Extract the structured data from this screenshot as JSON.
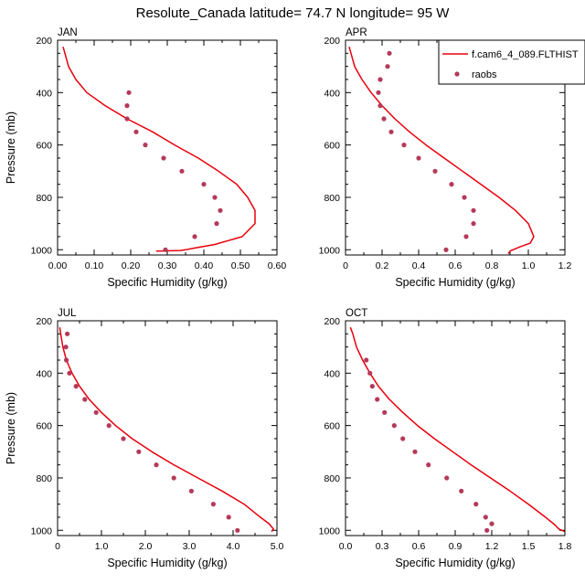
{
  "figure": {
    "title": "Resolute_Canada  latitude= 74.7 N longitude= 95 W"
  },
  "legend": {
    "model_label": "f.cam6_4_089.FLTHIST",
    "obs_label": "raobs",
    "model_color": "#e8000b",
    "obs_color": "#b5395a"
  },
  "chart_data": [
    {
      "type": "line",
      "panel": "JAN",
      "title": "JAN",
      "xlabel": "Specific Humidity (g/kg)",
      "ylabel": "Pressure (mb)",
      "xlim": [
        0,
        0.6
      ],
      "ylim": [
        200,
        1020
      ],
      "y_inverted": true,
      "xticks": [
        "0.00",
        "0.10",
        "0.20",
        "0.30",
        "0.40",
        "0.50",
        "0.60"
      ],
      "yticks": [
        "200",
        "400",
        "600",
        "800",
        "1000"
      ],
      "series": [
        {
          "name": "f.cam6_4_089.FLTHIST",
          "style": "line",
          "points": [
            [
              0.015,
              225
            ],
            [
              0.02,
              250
            ],
            [
              0.03,
              300
            ],
            [
              0.05,
              350
            ],
            [
              0.08,
              400
            ],
            [
              0.13,
              450
            ],
            [
              0.19,
              500
            ],
            [
              0.26,
              550
            ],
            [
              0.32,
              600
            ],
            [
              0.385,
              650
            ],
            [
              0.44,
              700
            ],
            [
              0.49,
              750
            ],
            [
              0.52,
              800
            ],
            [
              0.54,
              850
            ],
            [
              0.54,
              900
            ],
            [
              0.505,
              950
            ],
            [
              0.43,
              980
            ],
            [
              0.37,
              995
            ],
            [
              0.35,
              1000
            ],
            [
              0.335,
              1003
            ],
            [
              0.27,
              1005
            ]
          ]
        },
        {
          "name": "raobs",
          "style": "markers",
          "points": [
            [
              0.195,
              400
            ],
            [
              0.19,
              450
            ],
            [
              0.19,
              500
            ],
            [
              0.215,
              550
            ],
            [
              0.24,
              600
            ],
            [
              0.29,
              650
            ],
            [
              0.34,
              700
            ],
            [
              0.4,
              750
            ],
            [
              0.43,
              800
            ],
            [
              0.445,
              850
            ],
            [
              0.435,
              900
            ],
            [
              0.375,
              950
            ],
            [
              0.295,
              1000
            ]
          ]
        }
      ]
    },
    {
      "type": "line",
      "panel": "APR",
      "title": "APR",
      "xlabel": "Specific Humidity (g/kg)",
      "ylabel": "",
      "xlim": [
        0,
        1.2
      ],
      "ylim": [
        200,
        1020
      ],
      "y_inverted": true,
      "xticks": [
        "0",
        "0.2",
        "0.4",
        "0.6",
        "0.8",
        "1.0",
        "1.2"
      ],
      "yticks": [
        "200",
        "400",
        "600",
        "800",
        "1000"
      ],
      "series": [
        {
          "name": "f.cam6_4_089.FLTHIST",
          "style": "line",
          "points": [
            [
              0.02,
              225
            ],
            [
              0.03,
              250
            ],
            [
              0.05,
              300
            ],
            [
              0.09,
              350
            ],
            [
              0.14,
              400
            ],
            [
              0.2,
              450
            ],
            [
              0.27,
              500
            ],
            [
              0.35,
              550
            ],
            [
              0.44,
              600
            ],
            [
              0.54,
              650
            ],
            [
              0.64,
              700
            ],
            [
              0.74,
              750
            ],
            [
              0.84,
              800
            ],
            [
              0.93,
              850
            ],
            [
              1.0,
              900
            ],
            [
              1.03,
              950
            ],
            [
              1.01,
              975
            ],
            [
              0.95,
              990
            ],
            [
              0.9,
              1005
            ],
            [
              0.89,
              1015
            ]
          ]
        },
        {
          "name": "raobs",
          "style": "markers",
          "points": [
            [
              0.24,
              250
            ],
            [
              0.23,
              300
            ],
            [
              0.19,
              350
            ],
            [
              0.18,
              400
            ],
            [
              0.19,
              450
            ],
            [
              0.21,
              500
            ],
            [
              0.25,
              550
            ],
            [
              0.32,
              600
            ],
            [
              0.4,
              650
            ],
            [
              0.49,
              700
            ],
            [
              0.58,
              750
            ],
            [
              0.65,
              800
            ],
            [
              0.7,
              850
            ],
            [
              0.7,
              900
            ],
            [
              0.66,
              950
            ],
            [
              0.55,
              1000
            ]
          ]
        }
      ]
    },
    {
      "type": "line",
      "panel": "JUL",
      "title": "JUL",
      "xlabel": "Specific Humidity (g/kg)",
      "ylabel": "Pressure (mb)",
      "xlim": [
        0,
        5
      ],
      "ylim": [
        200,
        1020
      ],
      "y_inverted": true,
      "xticks": [
        "0",
        "1.0",
        "2.0",
        "3.0",
        "4.0",
        "5.0"
      ],
      "yticks": [
        "200",
        "400",
        "600",
        "800",
        "1000"
      ],
      "series": [
        {
          "name": "f.cam6_4_089.FLTHIST",
          "style": "line",
          "points": [
            [
              0.05,
              225
            ],
            [
              0.07,
              250
            ],
            [
              0.12,
              300
            ],
            [
              0.2,
              350
            ],
            [
              0.33,
              400
            ],
            [
              0.5,
              450
            ],
            [
              0.72,
              500
            ],
            [
              1.0,
              550
            ],
            [
              1.32,
              600
            ],
            [
              1.7,
              650
            ],
            [
              2.15,
              700
            ],
            [
              2.65,
              750
            ],
            [
              3.2,
              800
            ],
            [
              3.75,
              850
            ],
            [
              4.25,
              900
            ],
            [
              4.62,
              950
            ],
            [
              4.82,
              975
            ],
            [
              4.92,
              995
            ],
            [
              4.88,
              1005
            ]
          ]
        },
        {
          "name": "raobs",
          "style": "markers",
          "points": [
            [
              0.22,
              250
            ],
            [
              0.19,
              300
            ],
            [
              0.2,
              350
            ],
            [
              0.27,
              400
            ],
            [
              0.42,
              450
            ],
            [
              0.62,
              500
            ],
            [
              0.88,
              550
            ],
            [
              1.17,
              600
            ],
            [
              1.5,
              650
            ],
            [
              1.85,
              700
            ],
            [
              2.25,
              750
            ],
            [
              2.65,
              800
            ],
            [
              3.05,
              850
            ],
            [
              3.55,
              900
            ],
            [
              3.9,
              950
            ],
            [
              4.1,
              1000
            ]
          ]
        }
      ]
    },
    {
      "type": "line",
      "panel": "OCT",
      "title": "OCT",
      "xlabel": "Specific Humidity (g/kg)",
      "ylabel": "",
      "xlim": [
        0,
        1.8
      ],
      "ylim": [
        200,
        1020
      ],
      "y_inverted": true,
      "xticks": [
        "0.0",
        "0.3",
        "0.6",
        "0.9",
        "1.2",
        "1.5",
        "1.8"
      ],
      "yticks": [
        "200",
        "400",
        "600",
        "800",
        "1000"
      ],
      "series": [
        {
          "name": "f.cam6_4_089.FLTHIST",
          "style": "line",
          "points": [
            [
              0.04,
              225
            ],
            [
              0.06,
              250
            ],
            [
              0.09,
              300
            ],
            [
              0.14,
              350
            ],
            [
              0.2,
              400
            ],
            [
              0.27,
              450
            ],
            [
              0.36,
              500
            ],
            [
              0.47,
              550
            ],
            [
              0.59,
              600
            ],
            [
              0.73,
              650
            ],
            [
              0.88,
              700
            ],
            [
              1.03,
              750
            ],
            [
              1.19,
              800
            ],
            [
              1.35,
              850
            ],
            [
              1.5,
              900
            ],
            [
              1.64,
              950
            ],
            [
              1.72,
              980
            ],
            [
              1.75,
              995
            ],
            [
              1.8,
              1005
            ]
          ]
        },
        {
          "name": "raobs",
          "style": "markers",
          "points": [
            [
              0.17,
              350
            ],
            [
              0.2,
              400
            ],
            [
              0.22,
              450
            ],
            [
              0.26,
              500
            ],
            [
              0.32,
              550
            ],
            [
              0.4,
              600
            ],
            [
              0.47,
              650
            ],
            [
              0.57,
              700
            ],
            [
              0.68,
              750
            ],
            [
              0.83,
              800
            ],
            [
              0.95,
              850
            ],
            [
              1.07,
              900
            ],
            [
              1.15,
              950
            ],
            [
              1.2,
              975
            ],
            [
              1.16,
              1000
            ]
          ]
        }
      ]
    }
  ]
}
